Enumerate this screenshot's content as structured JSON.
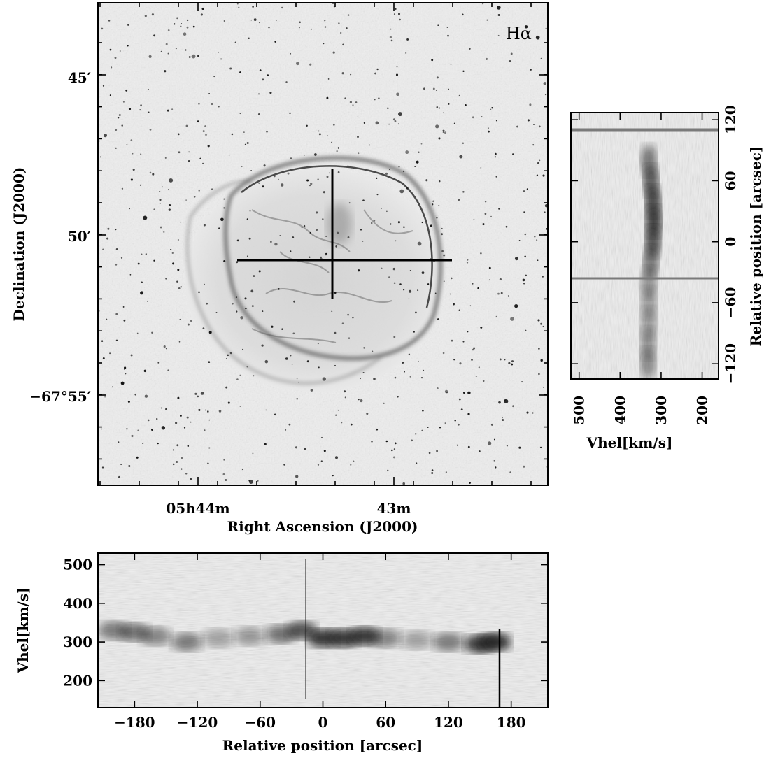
{
  "image_panel": {
    "label": "Hα",
    "dec_ticks": [
      "45′",
      "50′",
      "−67°55′"
    ],
    "ra_ticks": [
      "05h44m",
      "43m"
    ],
    "xlabel": "Right Ascension (J2000)",
    "ylabel": "Declination (J2000)"
  },
  "chart_data": [
    {
      "type": "heatmap",
      "name": "",
      "xlabel": "Vhel[km/s]",
      "ylabel": "Relative position [arcsec]",
      "xlim": [
        520,
        160
      ],
      "ylim": [
        -135,
        127
      ],
      "x_ticks": [
        500,
        400,
        300,
        200
      ],
      "y_ticks": [
        120,
        60,
        0,
        -60,
        -120
      ],
      "x_tick_labels": [
        "500",
        "400",
        "300",
        "200"
      ],
      "y_tick_labels": [
        "120",
        "60",
        "0",
        "−60",
        "−120"
      ],
      "emission_trace": [
        {
          "position": 80,
          "velocity": 330,
          "intensity": 0.6
        },
        {
          "position": 60,
          "velocity": 325,
          "intensity": 0.75
        },
        {
          "position": 40,
          "velocity": 320,
          "intensity": 0.85
        },
        {
          "position": 20,
          "velocity": 318,
          "intensity": 0.9
        },
        {
          "position": 0,
          "velocity": 320,
          "intensity": 0.8
        },
        {
          "position": -20,
          "velocity": 325,
          "intensity": 0.6
        },
        {
          "position": -40,
          "velocity": 330,
          "intensity": 0.45
        },
        {
          "position": -60,
          "velocity": 330,
          "intensity": 0.4
        },
        {
          "position": -80,
          "velocity": 330,
          "intensity": 0.4
        },
        {
          "position": -100,
          "velocity": 332,
          "intensity": 0.45
        },
        {
          "position": -120,
          "velocity": 332,
          "intensity": 0.5
        }
      ]
    },
    {
      "type": "heatmap",
      "name": "",
      "xlabel": "Relative position [arcsec]",
      "ylabel": "Vhel[km/s]",
      "xlim": [
        -215,
        215
      ],
      "ylim": [
        130,
        530
      ],
      "x_ticks": [
        -180,
        -120,
        -60,
        0,
        60,
        120,
        180
      ],
      "y_ticks": [
        500,
        400,
        300,
        200
      ],
      "x_tick_labels": [
        "−180",
        "−120",
        "−60",
        "0",
        "60",
        "120",
        "180"
      ],
      "y_tick_labels": [
        "500",
        "400",
        "300",
        "200"
      ],
      "emission_trace": [
        {
          "position": -200,
          "velocity": 330,
          "intensity": 0.55
        },
        {
          "position": -180,
          "velocity": 325,
          "intensity": 0.6
        },
        {
          "position": -160,
          "velocity": 315,
          "intensity": 0.5
        },
        {
          "position": -130,
          "velocity": 300,
          "intensity": 0.55
        },
        {
          "position": -100,
          "velocity": 310,
          "intensity": 0.35
        },
        {
          "position": -70,
          "velocity": 315,
          "intensity": 0.4
        },
        {
          "position": -40,
          "velocity": 320,
          "intensity": 0.6
        },
        {
          "position": -20,
          "velocity": 330,
          "intensity": 0.75
        },
        {
          "position": 0,
          "velocity": 310,
          "intensity": 0.9
        },
        {
          "position": 20,
          "velocity": 310,
          "intensity": 0.9
        },
        {
          "position": 40,
          "velocity": 315,
          "intensity": 0.9
        },
        {
          "position": 60,
          "velocity": 310,
          "intensity": 0.5
        },
        {
          "position": 90,
          "velocity": 305,
          "intensity": 0.35
        },
        {
          "position": 120,
          "velocity": 300,
          "intensity": 0.55
        },
        {
          "position": 150,
          "velocity": 295,
          "intensity": 0.9
        },
        {
          "position": 165,
          "velocity": 300,
          "intensity": 0.95
        }
      ]
    }
  ],
  "colors": {
    "background": "#ffffff",
    "ink": "#000000",
    "sky": "#efefef",
    "nebula": "#3a3a3a",
    "grain": "#d8d8d8"
  }
}
